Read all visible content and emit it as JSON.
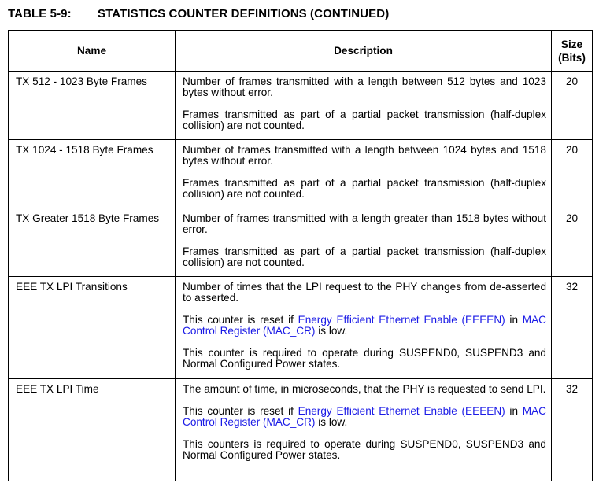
{
  "caption": {
    "number": "TABLE 5-9:",
    "title": "STATISTICS COUNTER DEFINITIONS (CONTINUED)"
  },
  "headers": {
    "name": "Name",
    "description": "Description",
    "size_line1": "Size",
    "size_line2": "(Bits)"
  },
  "rows": [
    {
      "name": "TX 512 - 1023 Byte Frames",
      "p1": "Number of frames transmitted with a length between 512 bytes and 1023 bytes without error.",
      "p2": "Frames transmitted as part of a partial packet transmission (half-duplex collision) are not counted.",
      "size": "20"
    },
    {
      "name": "TX 1024 - 1518 Byte Frames",
      "p1": "Number of frames transmitted with a length between 1024 bytes and 1518 bytes without error.",
      "p2": "Frames transmitted as part of a partial packet transmission (half-duplex collision) are not counted.",
      "size": "20"
    },
    {
      "name": "TX Greater 1518 Byte Frames",
      "p1": "Number of frames transmitted with a length greater than 1518 bytes without error.",
      "p2": "Frames transmitted as part of a partial packet transmission (half-duplex collision) are not counted.",
      "size": "20"
    },
    {
      "name": "EEE TX LPI Transitions",
      "p1": "Number of times that the LPI request to the PHY changes from de-asserted to asserted.",
      "p2_pre": "This counter is reset if ",
      "p2_link1": "Energy Efficient Ethernet Enable (EEEEN)",
      "p2_mid": " in ",
      "p2_link2": "MAC Control Register (MAC_CR)",
      "p2_post": " is low.",
      "p3": "This counter is required to operate during SUSPEND0, SUSPEND3 and Normal Configured Power states.",
      "size": "32"
    },
    {
      "name": "EEE TX LPI Time",
      "p1": "The amount of time, in microseconds, that the PHY is requested to send LPI.",
      "p2_pre": "This counter is reset if ",
      "p2_link1": "Energy Efficient Ethernet Enable (EEEEN)",
      "p2_mid": " in ",
      "p2_link2": "MAC Control Register (MAC_CR)",
      "p2_post": " is low.",
      "p3": "This counters is required to operate during SUSPEND0, SUSPEND3 and Normal Configured Power states.",
      "size": "32"
    }
  ],
  "colors": {
    "link": "#1a1ae6",
    "border": "#000000",
    "text": "#000000"
  }
}
